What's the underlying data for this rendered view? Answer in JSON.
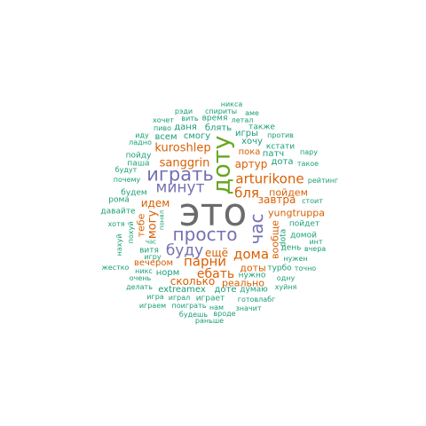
{
  "palette": {
    "gray": "#6b6b6b",
    "orange": "#d95f02",
    "purple": "#7570b3",
    "green": "#1b9e77",
    "olive": "#66a61e"
  },
  "words": [
    {
      "text": "это",
      "color": "#6b6b6b",
      "vertical": false
    },
    {
      "text": "доту",
      "color": "#66a61e",
      "vertical": true
    },
    {
      "text": "играть",
      "color": "#7570b3",
      "vertical": false
    },
    {
      "text": "просто",
      "color": "#7570b3",
      "vertical": false
    },
    {
      "text": "минут",
      "color": "#7570b3",
      "vertical": false
    },
    {
      "text": "буду",
      "color": "#7570b3",
      "vertical": false
    },
    {
      "text": "час",
      "color": "#7570b3",
      "vertical": true
    },
    {
      "text": "бля",
      "color": "#d95f02",
      "vertical": false
    },
    {
      "text": "arturikone",
      "color": "#d95f02",
      "vertical": false
    },
    {
      "text": "парни",
      "color": "#d95f02",
      "vertical": false
    },
    {
      "text": "дома",
      "color": "#d95f02",
      "vertical": false
    },
    {
      "text": "ебать",
      "color": "#d95f02",
      "vertical": false
    },
    {
      "text": "sanggrin",
      "color": "#d95f02",
      "vertical": false
    },
    {
      "text": "kuroshlep",
      "color": "#d95f02",
      "vertical": false
    },
    {
      "text": "идем",
      "color": "#d95f02",
      "vertical": false
    },
    {
      "text": "могу",
      "color": "#d95f02",
      "vertical": true
    },
    {
      "text": "сколько",
      "color": "#d95f02",
      "vertical": false
    },
    {
      "text": "завтра",
      "color": "#d95f02",
      "vertical": false
    },
    {
      "text": "yungtruppa",
      "color": "#d95f02",
      "vertical": false
    },
    {
      "text": "пойдем",
      "color": "#d95f02",
      "vertical": false
    },
    {
      "text": "артур",
      "color": "#d95f02",
      "vertical": false
    },
    {
      "text": "реально",
      "color": "#d95f02",
      "vertical": false
    },
    {
      "text": "доты",
      "color": "#d95f02",
      "vertical": false
    },
    {
      "text": "ещё",
      "color": "#d95f02",
      "vertical": false
    },
    {
      "text": "вечером",
      "color": "#d95f02",
      "vertical": false
    },
    {
      "text": "тебе",
      "color": "#d95f02",
      "vertical": true
    },
    {
      "text": "вообще",
      "color": "#d95f02",
      "vertical": true
    },
    {
      "text": "пока",
      "color": "#d95f02",
      "vertical": false
    },
    {
      "text": "хочу",
      "color": "#1b9e77",
      "vertical": false
    },
    {
      "text": "блять",
      "color": "#1b9e77",
      "vertical": false
    },
    {
      "text": "игры",
      "color": "#1b9e77",
      "vertical": false
    },
    {
      "text": "смогу",
      "color": "#1b9e77",
      "vertical": false
    },
    {
      "text": "всем",
      "color": "#1b9e77",
      "vertical": false
    },
    {
      "text": "даня",
      "color": "#1b9e77",
      "vertical": false
    },
    {
      "text": "время",
      "color": "#1b9e77",
      "vertical": false
    },
    {
      "text": "вить",
      "color": "#1b9e77",
      "vertical": false
    },
    {
      "text": "спириты",
      "color": "#1b9e77",
      "vertical": false
    },
    {
      "text": "рэди",
      "color": "#1b9e77",
      "vertical": false
    },
    {
      "text": "никса",
      "color": "#1b9e77",
      "vertical": false
    },
    {
      "text": "аме",
      "color": "#1b9e77",
      "vertical": false
    },
    {
      "text": "летал",
      "color": "#1b9e77",
      "vertical": false
    },
    {
      "text": "также",
      "color": "#1b9e77",
      "vertical": false
    },
    {
      "text": "против",
      "color": "#1b9e77",
      "vertical": false
    },
    {
      "text": "хочет",
      "color": "#1b9e77",
      "vertical": false
    },
    {
      "text": "пиво",
      "color": "#1b9e77",
      "vertical": false
    },
    {
      "text": "иду",
      "color": "#1b9e77",
      "vertical": false
    },
    {
      "text": "ладно",
      "color": "#1b9e77",
      "vertical": false
    },
    {
      "text": "пойду",
      "color": "#1b9e77",
      "vertical": false
    },
    {
      "text": "паша",
      "color": "#1b9e77",
      "vertical": false
    },
    {
      "text": "будут",
      "color": "#1b9e77",
      "vertical": false
    },
    {
      "text": "почему",
      "color": "#1b9e77",
      "vertical": false
    },
    {
      "text": "будем",
      "color": "#1b9e77",
      "vertical": false
    },
    {
      "text": "рома",
      "color": "#1b9e77",
      "vertical": false
    },
    {
      "text": "давайте",
      "color": "#1b9e77",
      "vertical": false
    },
    {
      "text": "хотя",
      "color": "#1b9e77",
      "vertical": false
    },
    {
      "text": "нахуй",
      "color": "#1b9e77",
      "vertical": true
    },
    {
      "text": "похуй",
      "color": "#1b9e77",
      "vertical": true
    },
    {
      "text": "понял",
      "color": "#1b9e77",
      "vertical": true
    },
    {
      "text": "час",
      "color": "#1b9e77",
      "vertical": false
    },
    {
      "text": "витя",
      "color": "#1b9e77",
      "vertical": false
    },
    {
      "text": "игру",
      "color": "#1b9e77",
      "vertical": false
    },
    {
      "text": "жестко",
      "color": "#1b9e77",
      "vertical": false
    },
    {
      "text": "никс",
      "color": "#1b9e77",
      "vertical": false
    },
    {
      "text": "очень",
      "color": "#1b9e77",
      "vertical": false
    },
    {
      "text": "делать",
      "color": "#1b9e77",
      "vertical": false
    },
    {
      "text": "норм",
      "color": "#1b9e77",
      "vertical": false
    },
    {
      "text": "extreamex",
      "color": "#1b9e77",
      "vertical": false
    },
    {
      "text": "играл",
      "color": "#1b9e77",
      "vertical": false
    },
    {
      "text": "игра",
      "color": "#1b9e77",
      "vertical": false
    },
    {
      "text": "играем",
      "color": "#1b9e77",
      "vertical": false
    },
    {
      "text": "играет",
      "color": "#1b9e77",
      "vertical": false
    },
    {
      "text": "поиграть",
      "color": "#1b9e77",
      "vertical": false
    },
    {
      "text": "нам",
      "color": "#1b9e77",
      "vertical": false
    },
    {
      "text": "будешь",
      "color": "#1b9e77",
      "vertical": false
    },
    {
      "text": "вроде",
      "color": "#1b9e77",
      "vertical": false
    },
    {
      "text": "раньше",
      "color": "#1b9e77",
      "vertical": false
    },
    {
      "text": "доте",
      "color": "#1b9e77",
      "vertical": false
    },
    {
      "text": "думаю",
      "color": "#1b9e77",
      "vertical": false
    },
    {
      "text": "нужно",
      "color": "#1b9e77",
      "vertical": false
    },
    {
      "text": "готовлабг",
      "color": "#1b9e77",
      "vertical": false
    },
    {
      "text": "значит",
      "color": "#1b9e77",
      "vertical": false
    },
    {
      "text": "турбо",
      "color": "#1b9e77",
      "vertical": false
    },
    {
      "text": "точно",
      "color": "#1b9e77",
      "vertical": false
    },
    {
      "text": "одну",
      "color": "#1b9e77",
      "vertical": false
    },
    {
      "text": "хуйня",
      "color": "#1b9e77",
      "vertical": false
    },
    {
      "text": "нужен",
      "color": "#1b9e77",
      "vertical": false
    },
    {
      "text": "вчера",
      "color": "#1b9e77",
      "vertical": false
    },
    {
      "text": "инт",
      "color": "#1b9e77",
      "vertical": false
    },
    {
      "text": "домой",
      "color": "#1b9e77",
      "vertical": false
    },
    {
      "text": "день",
      "color": "#1b9e77",
      "vertical": false
    },
    {
      "text": "dota",
      "color": "#1b9e77",
      "vertical": true
    },
    {
      "text": "пойдет",
      "color": "#1b9e77",
      "vertical": false
    },
    {
      "text": "стоит",
      "color": "#1b9e77",
      "vertical": false
    },
    {
      "text": "рейтинг",
      "color": "#1b9e77",
      "vertical": false
    },
    {
      "text": "такое",
      "color": "#1b9e77",
      "vertical": false
    },
    {
      "text": "дота",
      "color": "#1b9e77",
      "vertical": false
    },
    {
      "text": "патч",
      "color": "#1b9e77",
      "vertical": false
    },
    {
      "text": "кстати",
      "color": "#1b9e77",
      "vertical": false
    },
    {
      "text": "пару",
      "color": "#1b9e77",
      "vertical": false
    }
  ]
}
